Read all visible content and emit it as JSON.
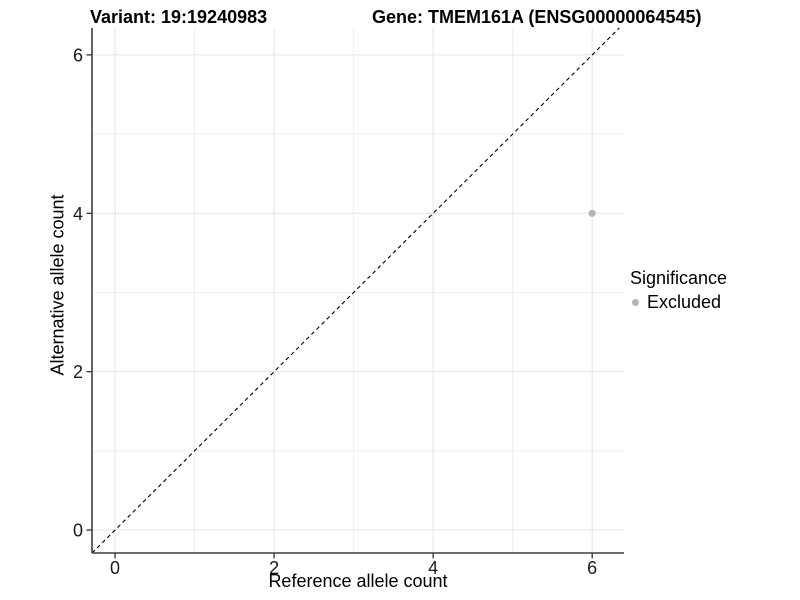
{
  "title": {
    "variant": "Variant: 19:19240983",
    "gene": "Gene: TMEM161A (ENSG00000064545)"
  },
  "chart_data": {
    "type": "scatter",
    "xlabel": "Reference allele count",
    "ylabel": "Alternative allele count",
    "xlim": [
      -0.29,
      6.4
    ],
    "ylim": [
      -0.29,
      6.34
    ],
    "x_ticks": [
      0,
      2,
      4,
      6
    ],
    "y_ticks": [
      0,
      2,
      4,
      6
    ],
    "x_minor_ticks": [
      1,
      3,
      5
    ],
    "y_minor_ticks": [
      1,
      3,
      5
    ],
    "grid": true,
    "identity_line": {
      "type": "dashed",
      "slope": 1,
      "intercept": 0,
      "from": -0.29,
      "to": 6.34
    },
    "points": [
      {
        "x": 6,
        "y": 4,
        "series": "Excluded"
      }
    ],
    "legend": {
      "title": "Significance",
      "position": "right",
      "entries": [
        {
          "label": "Excluded",
          "color": "#b4b4b4"
        }
      ]
    }
  },
  "colors": {
    "point": "#b4b4b4",
    "grid_major": "#e3e3e3",
    "grid_minor": "#eeeeee",
    "axis_line": "#3f3f3f",
    "tick_mark": "#333333",
    "tick_label": "#1a1a1a",
    "identity_line": "#000000",
    "background": "#ffffff"
  }
}
